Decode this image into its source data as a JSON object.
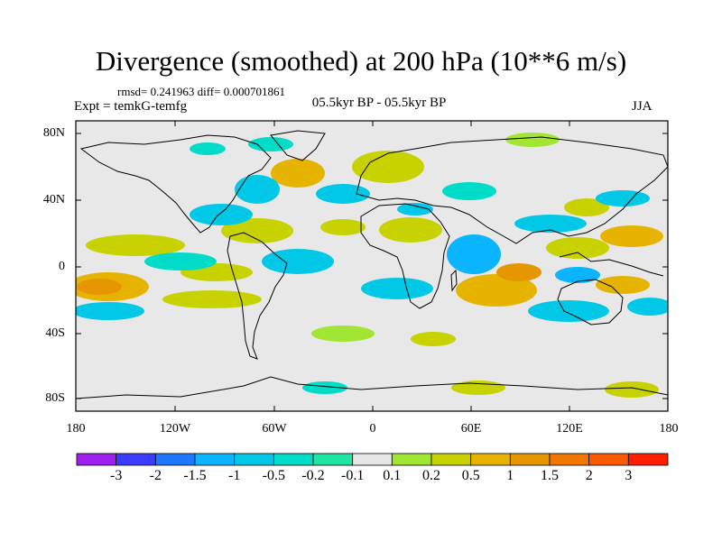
{
  "title": "Divergence (smoothed) at 200 hPa (10**6 m/s)",
  "stats": "rmsd= 0.241963 diff= 0.000701861",
  "experiment": "Expt = temkG-temfg",
  "period": "05.5kyr BP - 05.5kyr BP",
  "season": "JJA",
  "lat_labels": [
    "80N",
    "40N",
    "0",
    "40S",
    "80S"
  ],
  "lon_labels": [
    "180",
    "120W",
    "60W",
    "0",
    "60E",
    "120E",
    "180"
  ],
  "colorbar": {
    "labels": [
      "-3",
      "-2",
      "-1.5",
      "-1",
      "-0.5",
      "-0.2",
      "-0.1",
      "0.1",
      "0.2",
      "0.5",
      "1",
      "1.5",
      "2",
      "3"
    ],
    "colors": [
      "#a020f0",
      "#3c3cff",
      "#1e78ff",
      "#0ab4ff",
      "#00c8e6",
      "#00dcc8",
      "#1ee6a0",
      "#e6e6e6",
      "#a0e632",
      "#c8d200",
      "#e6b400",
      "#e69600",
      "#f07800",
      "#fa5a00",
      "#ff1e00"
    ]
  },
  "map": {
    "background_color": "#e8e8e8"
  }
}
